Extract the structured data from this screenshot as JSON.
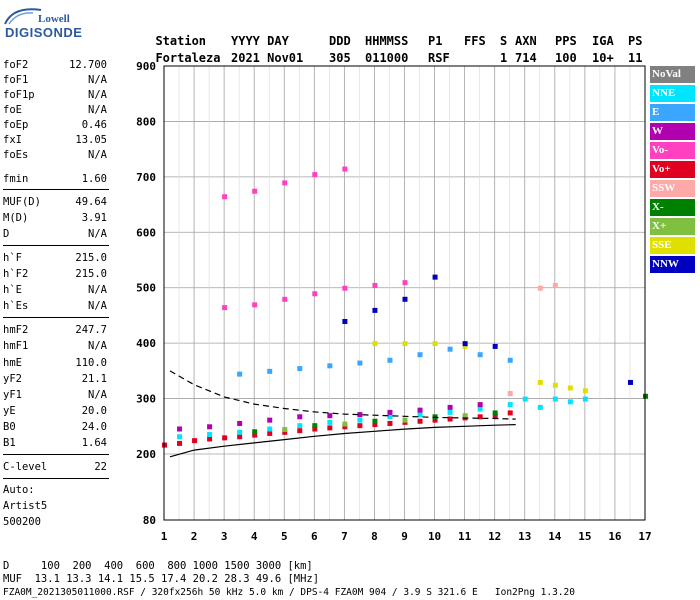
{
  "logo": {
    "top": "Lowell",
    "main": "DIGISONDE"
  },
  "header": {
    "labels": [
      "Station",
      "YYYY DAY",
      "DDD",
      "HHMMSS",
      "P1",
      "FFS",
      "S",
      "AXN",
      "PPS",
      "IGA",
      "PS"
    ],
    "values": [
      "Fortaleza",
      "2021 Nov01",
      "305",
      "011000",
      "RSF",
      "1",
      "714",
      "100",
      "10+",
      "11"
    ]
  },
  "params": {
    "group1": [
      {
        "label": "foF2",
        "value": "12.700"
      },
      {
        "label": "foF1",
        "value": "N/A"
      },
      {
        "label": "foF1p",
        "value": "N/A"
      },
      {
        "label": "foE",
        "value": "N/A"
      },
      {
        "label": "foEp",
        "value": "0.46"
      },
      {
        "label": "fxI",
        "value": "13.05"
      },
      {
        "label": "foEs",
        "value": "N/A"
      },
      {
        "label": "fmin",
        "value": "1.60"
      }
    ],
    "group2": [
      {
        "label": "MUF(D)",
        "value": "49.64"
      },
      {
        "label": "M(D)",
        "value": "3.91"
      },
      {
        "label": "D",
        "value": "N/A"
      }
    ],
    "group3": [
      {
        "label": "h`F",
        "value": "215.0"
      },
      {
        "label": "h`F2",
        "value": "215.0"
      },
      {
        "label": "h`E",
        "value": "N/A"
      },
      {
        "label": "h`Es",
        "value": "N/A"
      }
    ],
    "group4": [
      {
        "label": "hmF2",
        "value": "247.7"
      },
      {
        "label": "hmF1",
        "value": "N/A"
      },
      {
        "label": "hmE",
        "value": "110.0"
      },
      {
        "label": "yF2",
        "value": "21.1"
      },
      {
        "label": "yF1",
        "value": "N/A"
      },
      {
        "label": "yE",
        "value": "20.0"
      },
      {
        "label": "B0",
        "value": "24.0"
      },
      {
        "label": "B1",
        "value": "1.64"
      }
    ],
    "group5": [
      {
        "label": "C-level",
        "value": "22"
      }
    ],
    "auto": [
      "Auto:",
      "Artist5",
      "500200"
    ]
  },
  "bottom": {
    "d_row": "D     100  200  400  600  800 1000 1500 3000 [km]",
    "muf_row": "MUF  13.1 13.3 14.1 15.5 17.4 20.2 28.3 49.6 [MHz]",
    "info_row": "FZA0M_2021305011000.RSF / 320fx256h 50 kHz 5.0 km / DPS-4 FZA0M 904 / 3.9 S 321.6 E   Ion2Png 1.3.20"
  },
  "legend": [
    {
      "label": "NoVal",
      "color": "#808080"
    },
    {
      "label": "NNE",
      "color": "#00e5ff"
    },
    {
      "label": "E",
      "color": "#3aa6ff"
    },
    {
      "label": "W",
      "color": "#b000b0"
    },
    {
      "label": "Vo-",
      "color": "#ff40c0"
    },
    {
      "label": "Vo+",
      "color": "#e00020"
    },
    {
      "label": "SSW",
      "color": "#ffa8a8"
    },
    {
      "label": "X-",
      "color": "#008000"
    },
    {
      "label": "X+",
      "color": "#80c040"
    },
    {
      "label": "SSE",
      "color": "#e0e000"
    },
    {
      "label": "NNW",
      "color": "#0000c0"
    }
  ],
  "chart_data": {
    "type": "scatter",
    "x_ticks": [
      1,
      2,
      3,
      4,
      5,
      6,
      7,
      8,
      9,
      10,
      11,
      12,
      13,
      14,
      15,
      16,
      17
    ],
    "y_ticks": [
      80,
      200,
      300,
      400,
      500,
      600,
      700,
      800,
      900
    ],
    "xlim": [
      1,
      17
    ],
    "ylim": [
      80,
      900
    ],
    "grid": true,
    "legend_position": "right",
    "series": [
      {
        "name": "Vo+",
        "points": [
          [
            1.0,
            217
          ],
          [
            1.5,
            220
          ],
          [
            2.0,
            225
          ],
          [
            2.5,
            228
          ],
          [
            3.0,
            230
          ],
          [
            3.5,
            232
          ],
          [
            4.0,
            235
          ],
          [
            4.5,
            238
          ],
          [
            5.0,
            240
          ],
          [
            5.5,
            243
          ],
          [
            6.0,
            246
          ],
          [
            6.5,
            248
          ],
          [
            7.0,
            250
          ],
          [
            7.5,
            252
          ],
          [
            8.0,
            254
          ],
          [
            8.5,
            256
          ],
          [
            9.0,
            258
          ],
          [
            9.5,
            260
          ],
          [
            10.0,
            262
          ],
          [
            10.5,
            264
          ],
          [
            11.0,
            266
          ],
          [
            11.5,
            268
          ],
          [
            12.0,
            270
          ],
          [
            12.5,
            275
          ]
        ]
      },
      {
        "name": "NNE",
        "points": [
          [
            1.5,
            232
          ],
          [
            2.5,
            236
          ],
          [
            3.5,
            240
          ],
          [
            4.5,
            246
          ],
          [
            5.5,
            252
          ],
          [
            6.5,
            258
          ],
          [
            7.5,
            262
          ],
          [
            8.5,
            268
          ],
          [
            9.5,
            272
          ],
          [
            10.5,
            276
          ],
          [
            11.5,
            282
          ],
          [
            12.5,
            290
          ],
          [
            13.0,
            300
          ],
          [
            13.5,
            285
          ],
          [
            14.0,
            300
          ],
          [
            14.5,
            295
          ],
          [
            15.0,
            300
          ]
        ]
      },
      {
        "name": "W",
        "points": [
          [
            1.5,
            246
          ],
          [
            2.5,
            250
          ],
          [
            3.5,
            256
          ],
          [
            4.5,
            262
          ],
          [
            5.5,
            268
          ],
          [
            6.5,
            270
          ],
          [
            7.5,
            272
          ],
          [
            8.5,
            276
          ],
          [
            9.5,
            280
          ],
          [
            10.5,
            285
          ],
          [
            11.5,
            290
          ]
        ]
      },
      {
        "name": "Vo-",
        "points": [
          [
            3.0,
            465
          ],
          [
            4.0,
            470
          ],
          [
            5.0,
            480
          ],
          [
            6.0,
            490
          ],
          [
            7.0,
            500
          ],
          [
            8.0,
            505
          ],
          [
            9.0,
            510
          ],
          [
            3.0,
            665
          ],
          [
            4.0,
            675
          ],
          [
            5.0,
            690
          ],
          [
            6.0,
            705
          ],
          [
            7.0,
            715
          ]
        ]
      },
      {
        "name": "E",
        "points": [
          [
            3.5,
            345
          ],
          [
            4.5,
            350
          ],
          [
            5.5,
            355
          ],
          [
            6.5,
            360
          ],
          [
            7.5,
            365
          ],
          [
            8.5,
            370
          ],
          [
            9.5,
            380
          ],
          [
            10.5,
            390
          ],
          [
            11.5,
            380
          ],
          [
            12.5,
            370
          ]
        ]
      },
      {
        "name": "SSE",
        "points": [
          [
            8.0,
            400
          ],
          [
            9.0,
            400
          ],
          [
            10.0,
            400
          ],
          [
            11.0,
            395
          ],
          [
            13.5,
            330
          ],
          [
            14.0,
            325
          ],
          [
            14.5,
            320
          ],
          [
            15.0,
            315
          ]
        ]
      },
      {
        "name": "NNW",
        "points": [
          [
            7.0,
            440
          ],
          [
            8.0,
            460
          ],
          [
            9.0,
            480
          ],
          [
            10.0,
            520
          ],
          [
            11.0,
            400
          ],
          [
            12.0,
            395
          ],
          [
            16.5,
            330
          ]
        ]
      },
      {
        "name": "X-",
        "points": [
          [
            4.0,
            241
          ],
          [
            6.0,
            252
          ],
          [
            8.0,
            260
          ],
          [
            10.0,
            268
          ],
          [
            12.0,
            275
          ],
          [
            17.0,
            305
          ]
        ]
      },
      {
        "name": "SSW",
        "points": [
          [
            13.5,
            500
          ],
          [
            14.0,
            505
          ],
          [
            12.5,
            310
          ]
        ]
      },
      {
        "name": "X+",
        "points": [
          [
            5.0,
            245
          ],
          [
            7.0,
            255
          ],
          [
            9.0,
            262
          ],
          [
            11.0,
            270
          ]
        ]
      }
    ],
    "lines": [
      {
        "name": "solid",
        "points": [
          [
            1.2,
            195
          ],
          [
            2,
            207
          ],
          [
            3,
            214
          ],
          [
            4,
            220
          ],
          [
            5,
            226
          ],
          [
            6,
            232
          ],
          [
            7,
            237
          ],
          [
            8,
            241
          ],
          [
            9,
            245
          ],
          [
            10,
            248
          ],
          [
            11,
            250
          ],
          [
            12,
            252
          ],
          [
            12.7,
            253
          ]
        ]
      },
      {
        "name": "dashed",
        "points": [
          [
            1.2,
            350
          ],
          [
            2,
            325
          ],
          [
            3,
            303
          ],
          [
            4,
            290
          ],
          [
            5,
            282
          ],
          [
            6,
            276
          ],
          [
            7,
            272
          ],
          [
            8,
            270
          ],
          [
            9,
            268
          ],
          [
            10,
            266
          ],
          [
            11,
            265
          ],
          [
            12,
            264
          ],
          [
            12.7,
            263
          ]
        ]
      }
    ]
  }
}
